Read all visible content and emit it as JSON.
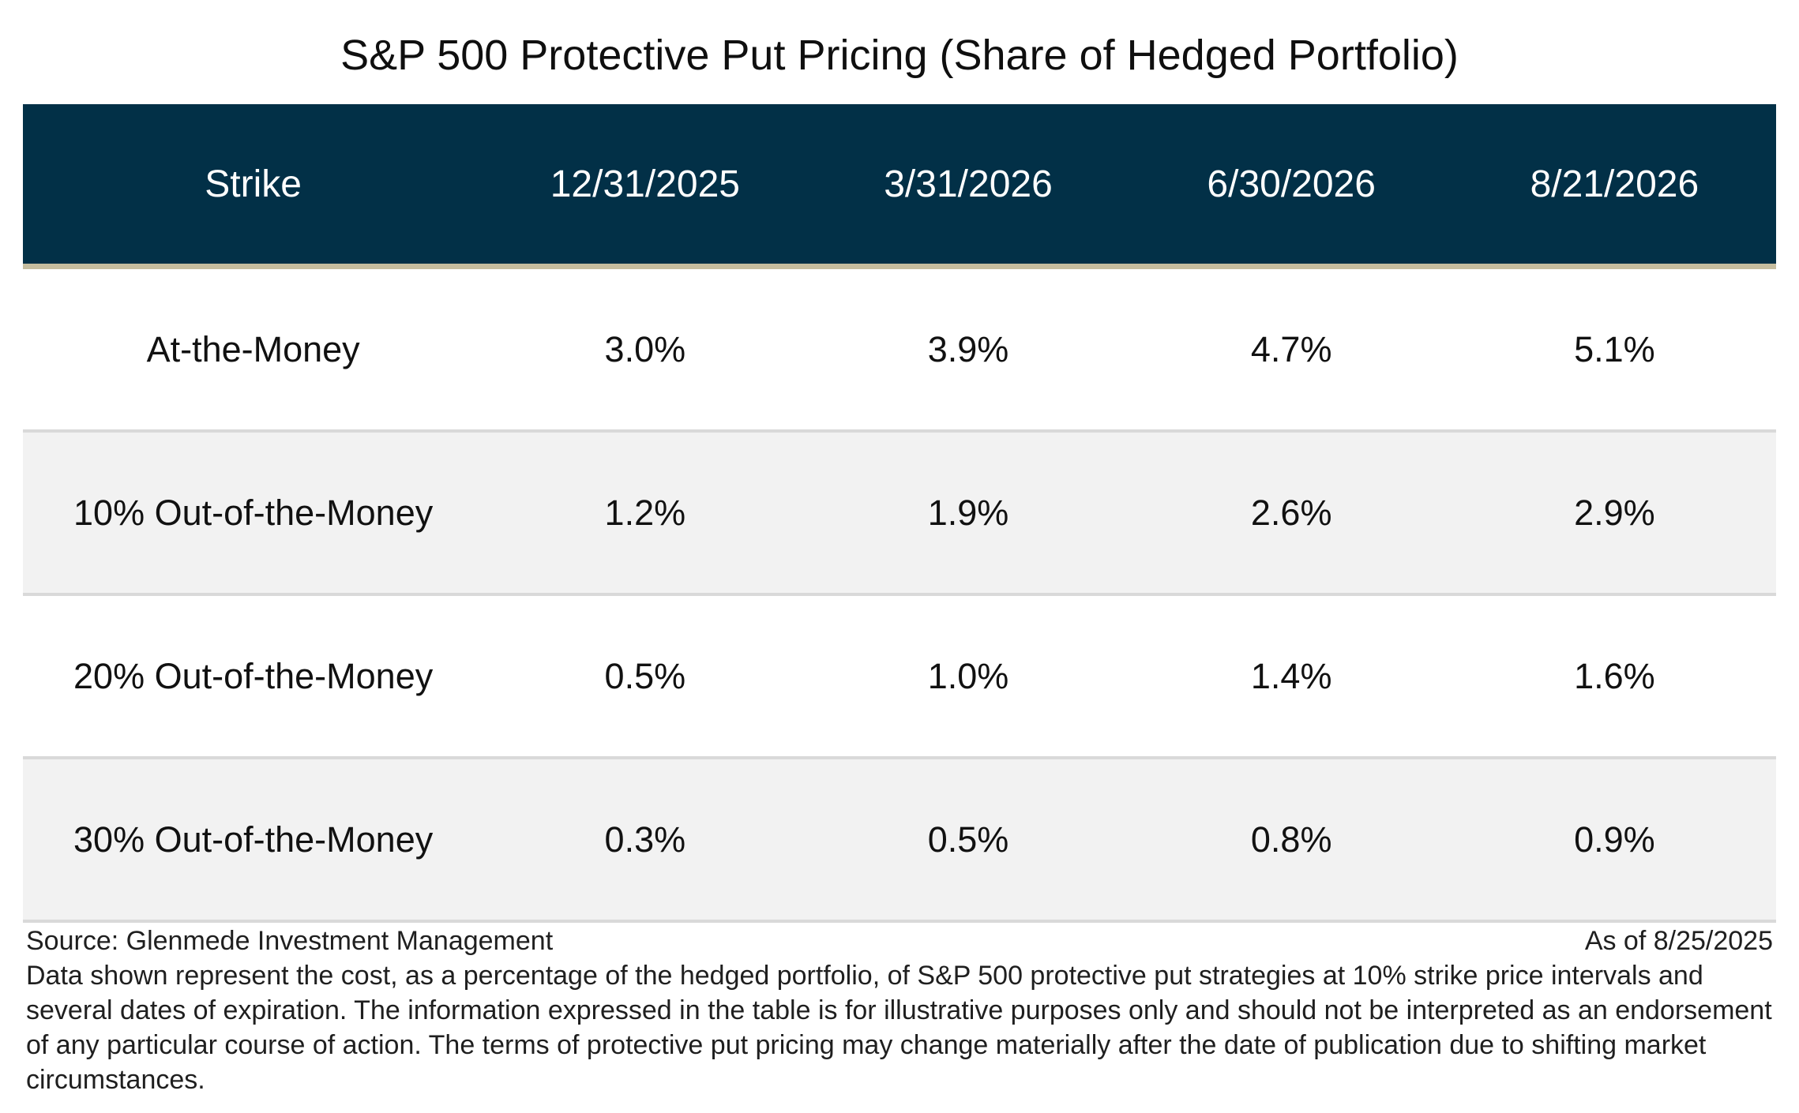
{
  "title": "S&P 500 Protective Put Pricing (Share of Hedged Portfolio)",
  "table": {
    "headers": [
      "Strike",
      "12/31/2025",
      "3/31/2026",
      "6/30/2026",
      "8/21/2026"
    ],
    "rows": [
      [
        "At-the-Money",
        "3.0%",
        "3.9%",
        "4.7%",
        "5.1%"
      ],
      [
        "10% Out-of-the-Money",
        "1.2%",
        "1.9%",
        "2.6%",
        "2.9%"
      ],
      [
        "20% Out-of-the-Money",
        "0.5%",
        "1.0%",
        "1.4%",
        "1.6%"
      ],
      [
        "30% Out-of-the-Money",
        "0.3%",
        "0.5%",
        "0.8%",
        "0.9%"
      ]
    ]
  },
  "footer": {
    "source": "Source: Glenmede Investment Management",
    "as_of": "As of 8/25/2025",
    "note": "Data shown represent the cost, as a percentage of the hedged portfolio, of S&P 500 protective put strategies at 10% strike price intervals and several dates of expiration. The information expressed in the table is for illustrative purposes only and should not be interpreted as an endorsement of any particular course of action. The terms of protective put pricing may change materially after the date of publication due to shifting market circumstances."
  },
  "colors": {
    "header_bg": "#023047",
    "header_rule": "#c5bd9f",
    "row_shade": "#f2f2f2",
    "row_divider": "#d9d9d9"
  }
}
